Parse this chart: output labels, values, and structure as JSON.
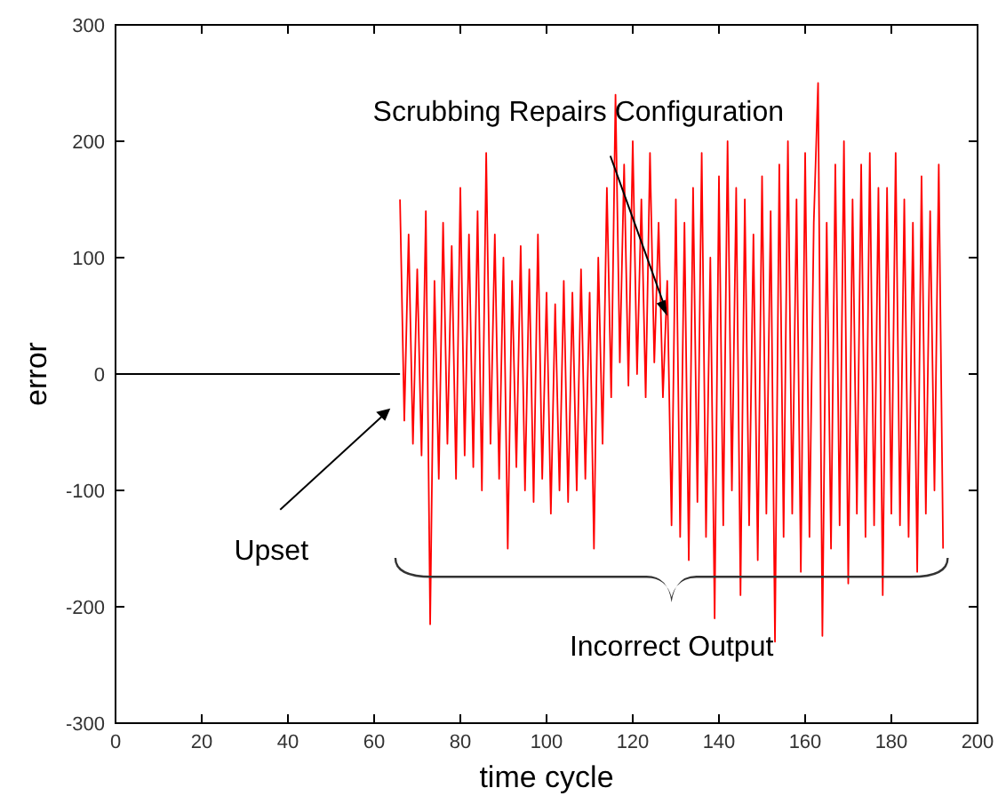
{
  "chart_data": {
    "type": "line",
    "xlabel": "time cycle",
    "ylabel": "error",
    "xlim": [
      0,
      200
    ],
    "ylim": [
      -300,
      300
    ],
    "xticks": [
      0,
      20,
      40,
      60,
      80,
      100,
      120,
      140,
      160,
      180,
      {
        "value": 200,
        "label": "200"
      }
    ],
    "yticks": [
      -300,
      -200,
      -100,
      0,
      100,
      200,
      300
    ],
    "grid": false,
    "annotations": [
      {
        "text": "Upset",
        "x": 65,
        "y": -25
      },
      {
        "text": "Scrubbing Repairs Configuration",
        "x": 128,
        "y": 50
      },
      "Incorrect Output"
    ],
    "series": [
      {
        "color": "#000000",
        "x": [
          0,
          66
        ],
        "values": [
          0,
          0
        ]
      },
      {
        "color": "#ff0000",
        "x": [
          66,
          67,
          68,
          69,
          70,
          71,
          72,
          73,
          74,
          75,
          76,
          77,
          78,
          79,
          80,
          81,
          82,
          83,
          84,
          85,
          86,
          87,
          88,
          89,
          90,
          91,
          92,
          93,
          94,
          95,
          96,
          97,
          98,
          99,
          100,
          101,
          102,
          103,
          104,
          105,
          106,
          107,
          108,
          109,
          110,
          111,
          112,
          113,
          114,
          115,
          116,
          117,
          118,
          119,
          120,
          121,
          122,
          123,
          124,
          125,
          126,
          127,
          128,
          129,
          130,
          131,
          132,
          133,
          134,
          135,
          136,
          137,
          138,
          139,
          140,
          141,
          142,
          143,
          144,
          145,
          146,
          147,
          148,
          149,
          150,
          151,
          152,
          153,
          154,
          155,
          156,
          157,
          158,
          159,
          160,
          161,
          162,
          163,
          164,
          165,
          166,
          167,
          168,
          169,
          170,
          171,
          172,
          173,
          174,
          175,
          176,
          177,
          178,
          179,
          180,
          181,
          182,
          183,
          184,
          185,
          186,
          187,
          188,
          189,
          190,
          191,
          192
        ],
        "values": [
          150,
          -40,
          120,
          -60,
          90,
          -70,
          140,
          -215,
          80,
          -90,
          130,
          -60,
          110,
          -90,
          160,
          -70,
          120,
          -80,
          140,
          -100,
          190,
          -60,
          120,
          -90,
          100,
          -150,
          80,
          -80,
          110,
          -100,
          90,
          -110,
          120,
          -90,
          70,
          -120,
          60,
          -100,
          80,
          -110,
          70,
          -100,
          90,
          -90,
          70,
          -150,
          100,
          -60,
          160,
          -20,
          240,
          10,
          180,
          -10,
          200,
          0,
          150,
          -20,
          190,
          10,
          130,
          -20,
          80,
          -130,
          150,
          -140,
          130,
          -160,
          160,
          -110,
          190,
          -140,
          100,
          -210,
          170,
          -130,
          200,
          -100,
          160,
          -190,
          150,
          -130,
          120,
          -160,
          170,
          -120,
          140,
          -230,
          180,
          -140,
          200,
          -120,
          150,
          -170,
          190,
          -140,
          130,
          250,
          -225,
          130,
          -150,
          180,
          -130,
          200,
          -180,
          150,
          -120,
          180,
          -140,
          190,
          -130,
          160,
          -190,
          160,
          -120,
          190,
          -130,
          150,
          -140,
          130,
          -170,
          170,
          -120,
          140,
          -100,
          180,
          -150
        ]
      }
    ]
  }
}
